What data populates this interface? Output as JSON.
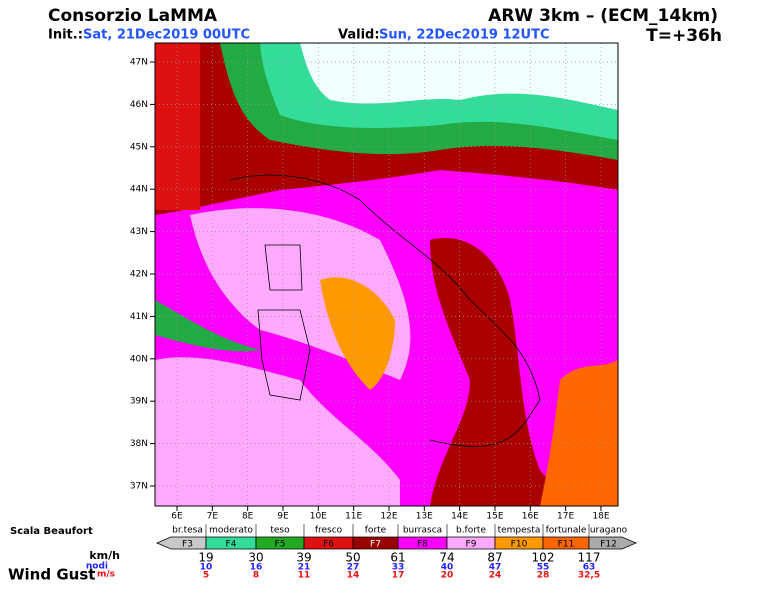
{
  "header": {
    "org": "Consorzio LaMMA",
    "model": "ARW 3km – (ECM_14km)",
    "init_label": "Init.:",
    "init_value": "Sat, 21Dec2019 00UTC",
    "valid_label": "Valid:",
    "valid_value": "Sun, 22Dec2019 12UTC",
    "step": "T=+36h"
  },
  "map": {
    "lat_labels": [
      "47N",
      "46N",
      "45N",
      "44N",
      "43N",
      "42N",
      "41N",
      "40N",
      "39N",
      "38N",
      "37N"
    ],
    "lon_labels": [
      "6E",
      "7E",
      "8E",
      "9E",
      "10E",
      "11E",
      "12E",
      "13E",
      "14E",
      "15E",
      "16E",
      "17E",
      "18E"
    ]
  },
  "legend": {
    "title": "Scala Beaufort",
    "classes": [
      {
        "name": "br.tesa",
        "code": "F3"
      },
      {
        "name": "moderato",
        "code": "F4"
      },
      {
        "name": "teso",
        "code": "F5"
      },
      {
        "name": "fresco",
        "code": "F6"
      },
      {
        "name": "forte",
        "code": "F7"
      },
      {
        "name": "burrasca",
        "code": "F8"
      },
      {
        "name": "b.forte",
        "code": "F9"
      },
      {
        "name": "tempesta",
        "code": "F10"
      },
      {
        "name": "fortunale",
        "code": "F11"
      },
      {
        "name": "uragano",
        "code": "F12"
      }
    ],
    "kmh_label": "km/h",
    "knots_label": "nodi",
    "ms_label": "m/s",
    "gust_label": "Wind Gust",
    "kmh": [
      19,
      30,
      39,
      50,
      61,
      74,
      87,
      102,
      117
    ],
    "knots": [
      10,
      16,
      21,
      27,
      33,
      40,
      47,
      55,
      63
    ],
    "ms": [
      5,
      8,
      11,
      14,
      17,
      20,
      24,
      28,
      "32,5"
    ]
  }
}
